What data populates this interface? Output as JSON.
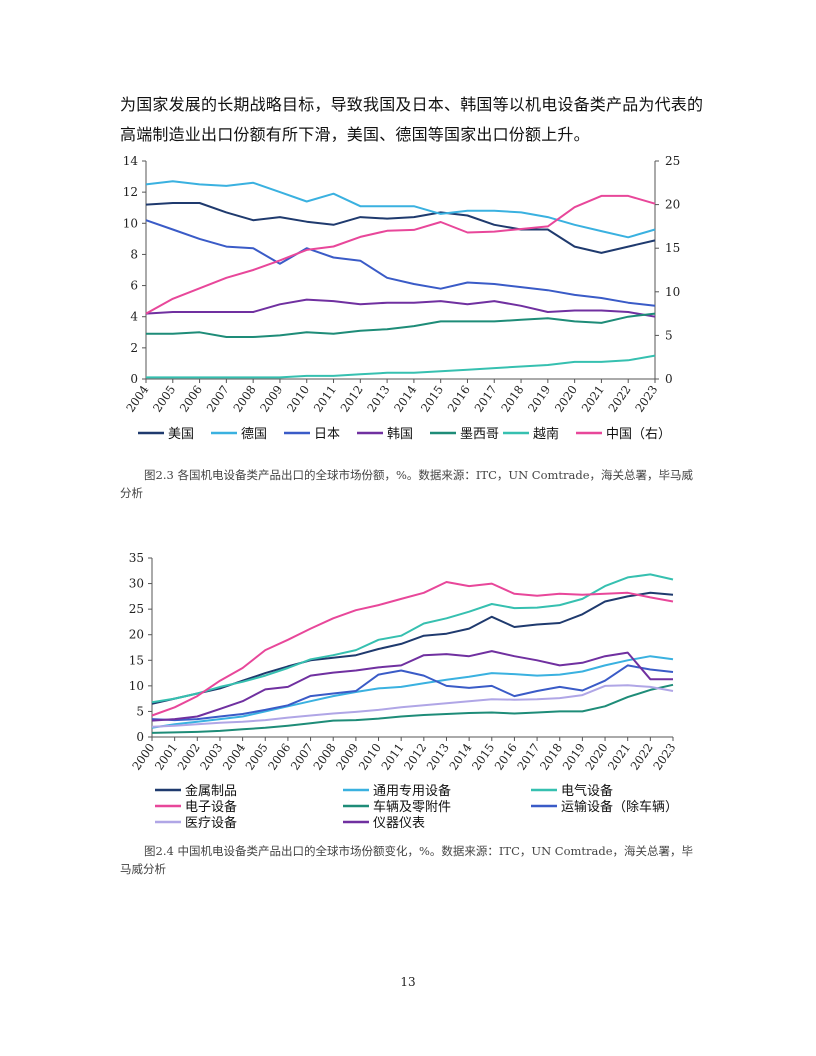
{
  "paragraph": {
    "line1": "为国家发展的长期战略目标，导致我国及日本、韩国等以机电设备类产品为代表的",
    "line2": "高端制造业出口份额有所下滑，美国、德国等国家出口份额上升。"
  },
  "captions": {
    "fig1": "图2.3  各国机电设备类产品出口的全球市场份额，%。数据来源：ITC，UN Comtrade，海关总署，毕马威分析",
    "fig2": "图2.4  中国机电设备类产品出口的全球市场份额变化，%。数据来源：ITC，UN Comtrade，海关总署，毕马威分析"
  },
  "page_number": "13",
  "chart_data": [
    {
      "type": "line",
      "title": "",
      "x": [
        "2004",
        "2005",
        "2006",
        "2007",
        "2008",
        "2009",
        "2010",
        "2011",
        "2012",
        "2013",
        "2014",
        "2015",
        "2016",
        "2017",
        "2018",
        "2019",
        "2020",
        "2021",
        "2022",
        "2023"
      ],
      "ylim": [
        0,
        14
      ],
      "yticks": [
        0,
        2,
        4,
        6,
        8,
        10,
        12,
        14
      ],
      "y2lim": [
        0,
        25
      ],
      "y2ticks": [
        0,
        5,
        10,
        15,
        20,
        25
      ],
      "grid": false,
      "legend": "bottom",
      "series": [
        {
          "name": "美国",
          "color": "#1f3a6e",
          "axis": "left",
          "values": [
            11.2,
            11.3,
            11.3,
            10.7,
            10.2,
            10.4,
            10.1,
            9.9,
            10.4,
            10.3,
            10.4,
            10.7,
            10.5,
            9.9,
            9.6,
            9.6,
            8.5,
            8.1,
            8.5,
            8.9
          ]
        },
        {
          "name": "德国",
          "color": "#3ab1e0",
          "axis": "left",
          "values": [
            12.5,
            12.7,
            12.5,
            12.4,
            12.6,
            12.0,
            11.4,
            11.9,
            11.1,
            11.1,
            11.1,
            10.6,
            10.8,
            10.8,
            10.7,
            10.4,
            9.9,
            9.5,
            9.1,
            9.6
          ]
        },
        {
          "name": "日本",
          "color": "#3a5bc7",
          "axis": "left",
          "values": [
            10.2,
            9.6,
            9.0,
            8.5,
            8.4,
            7.4,
            8.4,
            7.8,
            7.6,
            6.5,
            6.1,
            5.8,
            6.2,
            6.1,
            5.9,
            5.7,
            5.4,
            5.2,
            4.9,
            4.7
          ]
        },
        {
          "name": "韩国",
          "color": "#7030a0",
          "axis": "left",
          "values": [
            4.2,
            4.3,
            4.3,
            4.3,
            4.3,
            4.8,
            5.1,
            5.0,
            4.8,
            4.9,
            4.9,
            5.0,
            4.8,
            5.0,
            4.7,
            4.3,
            4.4,
            4.4,
            4.3,
            4.0
          ]
        },
        {
          "name": "墨西哥",
          "color": "#1e8c78",
          "axis": "left",
          "values": [
            2.9,
            2.9,
            3.0,
            2.7,
            2.7,
            2.8,
            3.0,
            2.9,
            3.1,
            3.2,
            3.4,
            3.7,
            3.7,
            3.7,
            3.8,
            3.9,
            3.7,
            3.6,
            4.0,
            4.2
          ]
        },
        {
          "name": "越南",
          "color": "#36c0b0",
          "axis": "left",
          "values": [
            0.1,
            0.1,
            0.1,
            0.1,
            0.1,
            0.1,
            0.2,
            0.2,
            0.3,
            0.4,
            0.4,
            0.5,
            0.6,
            0.7,
            0.8,
            0.9,
            1.1,
            1.1,
            1.2,
            1.5
          ]
        },
        {
          "name": "中国（右）",
          "color": "#e8479a",
          "axis": "right",
          "values": [
            7.5,
            9.2,
            10.4,
            11.6,
            12.5,
            13.6,
            14.8,
            15.2,
            16.3,
            17.0,
            17.1,
            18.0,
            16.8,
            16.9,
            17.2,
            17.5,
            19.7,
            21.0,
            21.0,
            20.1
          ]
        }
      ]
    },
    {
      "type": "line",
      "title": "",
      "x": [
        "2000",
        "2001",
        "2002",
        "2003",
        "2004",
        "2005",
        "2006",
        "2007",
        "2008",
        "2009",
        "2010",
        "2011",
        "2012",
        "2013",
        "2014",
        "2015",
        "2016",
        "2017",
        "2018",
        "2019",
        "2020",
        "2021",
        "2022",
        "2023"
      ],
      "ylim": [
        0,
        35
      ],
      "yticks": [
        0,
        5,
        10,
        15,
        20,
        25,
        30,
        35
      ],
      "grid": false,
      "legend": "bottom",
      "series": [
        {
          "name": "金属制品",
          "color": "#1f3a6e",
          "values": [
            6.5,
            7.5,
            8.5,
            9.5,
            11.0,
            12.5,
            13.8,
            15.0,
            15.5,
            16.0,
            17.2,
            18.2,
            19.8,
            20.2,
            21.2,
            23.5,
            21.5,
            22.0,
            22.3,
            24.0,
            26.5,
            27.5,
            28.2,
            27.8
          ]
        },
        {
          "name": "通用专用设备",
          "color": "#3ab1e0",
          "values": [
            1.8,
            2.5,
            3.0,
            3.5,
            4.0,
            5.0,
            6.0,
            7.0,
            8.0,
            8.8,
            9.5,
            9.8,
            10.5,
            11.2,
            11.8,
            12.5,
            12.3,
            12.0,
            12.2,
            12.8,
            14.0,
            15.0,
            15.8,
            15.2
          ]
        },
        {
          "name": "电气设备",
          "color": "#36c0b0",
          "values": [
            6.8,
            7.5,
            8.5,
            9.8,
            10.8,
            12.0,
            13.5,
            15.2,
            16.0,
            17.0,
            19.0,
            19.8,
            22.2,
            23.2,
            24.5,
            26.0,
            25.2,
            25.3,
            25.8,
            27.0,
            29.5,
            31.2,
            31.8,
            30.8
          ]
        },
        {
          "name": "电子设备",
          "color": "#e8479a",
          "values": [
            4.2,
            5.8,
            8.0,
            11.0,
            13.5,
            17.0,
            19.0,
            21.2,
            23.2,
            24.8,
            25.8,
            27.0,
            28.2,
            30.3,
            29.5,
            30.0,
            28.0,
            27.6,
            28.0,
            27.8,
            28.0,
            28.2,
            27.3,
            26.5
          ]
        },
        {
          "name": "车辆及零附件",
          "color": "#1e8c78",
          "values": [
            0.8,
            0.9,
            1.0,
            1.2,
            1.5,
            1.8,
            2.2,
            2.7,
            3.2,
            3.3,
            3.6,
            4.0,
            4.3,
            4.5,
            4.7,
            4.8,
            4.6,
            4.8,
            5.0,
            5.0,
            6.0,
            7.8,
            9.2,
            10.2
          ]
        },
        {
          "name": "运输设备（除车辆）",
          "color": "#3a5bc7",
          "values": [
            3.5,
            3.3,
            3.5,
            4.0,
            4.5,
            5.3,
            6.2,
            8.0,
            8.5,
            9.0,
            12.2,
            13.0,
            12.0,
            10.0,
            9.6,
            10.0,
            8.0,
            9.0,
            9.8,
            9.1,
            11.0,
            14.0,
            13.2,
            12.7
          ]
        },
        {
          "name": "医疗设备",
          "color": "#b0a6e6",
          "values": [
            2.0,
            2.2,
            2.5,
            2.8,
            3.0,
            3.3,
            3.8,
            4.2,
            4.6,
            4.9,
            5.3,
            5.8,
            6.2,
            6.6,
            7.0,
            7.4,
            7.3,
            7.4,
            7.6,
            8.2,
            10.0,
            10.1,
            9.8,
            9.0
          ]
        },
        {
          "name": "仪器仪表",
          "color": "#7030a0",
          "values": [
            3.2,
            3.5,
            4.0,
            5.5,
            7.0,
            9.3,
            9.8,
            12.0,
            12.6,
            13.0,
            13.6,
            14.0,
            16.0,
            16.2,
            15.8,
            16.8,
            15.8,
            15.0,
            14.0,
            14.5,
            15.8,
            16.5,
            11.3,
            11.3
          ]
        }
      ]
    }
  ]
}
